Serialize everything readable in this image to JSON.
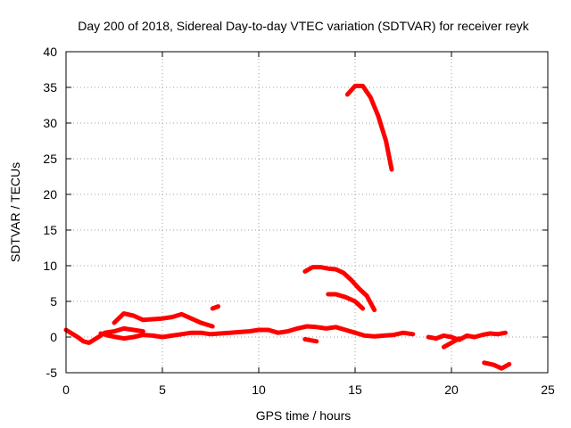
{
  "chart_data": {
    "type": "line",
    "title": "Day 200 of 2018, Sidereal Day-to-day VTEC variation (SDTVAR) for receiver reyk",
    "xlabel": "GPS time / hours",
    "ylabel": "SDTVAR / TECUs",
    "xlim": [
      0,
      25
    ],
    "ylim": [
      -5,
      40
    ],
    "xticks": [
      0,
      5,
      10,
      15,
      20,
      25
    ],
    "yticks": [
      -5,
      0,
      5,
      10,
      15,
      20,
      25,
      30,
      35,
      40
    ],
    "grid": true,
    "color": "#ff0000",
    "series": [
      {
        "name": "s1",
        "x": [
          0,
          0.3,
          0.6,
          0.9,
          1.2,
          1.5,
          1.8
        ],
        "y": [
          1,
          0.5,
          0,
          -0.6,
          -0.8,
          -0.3,
          0.2
        ]
      },
      {
        "name": "s2",
        "x": [
          1.8,
          2.2,
          2.6,
          3.0,
          3.5,
          4.0,
          4.5,
          5.0,
          5.5,
          6.0,
          6.5,
          7.0,
          7.5,
          8.0,
          8.5,
          9.0,
          9.5,
          10.0,
          10.5,
          11.0,
          11.5,
          12.0,
          12.5,
          13.0,
          13.5,
          14.0,
          14.5,
          15.0,
          15.5,
          16.0,
          16.5,
          17.0,
          17.5,
          18.0
        ],
        "y": [
          0.5,
          0.2,
          0.0,
          -0.2,
          0.0,
          0.3,
          0.2,
          0.0,
          0.2,
          0.4,
          0.6,
          0.6,
          0.4,
          0.5,
          0.6,
          0.7,
          0.8,
          1.0,
          1.0,
          0.6,
          0.8,
          1.2,
          1.5,
          1.4,
          1.2,
          1.4,
          1.0,
          0.6,
          0.2,
          0.1,
          0.2,
          0.3,
          0.6,
          0.4
        ]
      },
      {
        "name": "s3",
        "x": [
          2.5,
          3.0,
          3.5,
          4.0,
          4.5,
          5.0,
          5.5,
          6.0,
          6.5,
          7.0,
          7.6
        ],
        "y": [
          2.0,
          3.3,
          3.0,
          2.4,
          2.5,
          2.6,
          2.8,
          3.2,
          2.6,
          2.0,
          1.5
        ]
      },
      {
        "name": "s4",
        "x": [
          2.0,
          2.5,
          3.0,
          3.5,
          4.0
        ],
        "y": [
          0.6,
          0.8,
          1.2,
          1.0,
          0.8
        ]
      },
      {
        "name": "s5",
        "x": [
          7.6,
          7.9
        ],
        "y": [
          4.0,
          4.3
        ]
      },
      {
        "name": "s6",
        "x": [
          18.8,
          19.2,
          19.6,
          20.0,
          20.4,
          20.8,
          21.2,
          21.6,
          22.0,
          22.4,
          22.8
        ],
        "y": [
          0.0,
          -0.2,
          0.2,
          0.0,
          -0.4,
          0.2,
          0.0,
          0.3,
          0.5,
          0.4,
          0.6
        ]
      },
      {
        "name": "s7",
        "x": [
          19.6,
          20.0,
          20.4
        ],
        "y": [
          -1.4,
          -0.8,
          -0.2
        ]
      },
      {
        "name": "s8",
        "x": [
          21.7,
          22.2,
          22.6,
          23.0
        ],
        "y": [
          -3.6,
          -3.9,
          -4.4,
          -3.8
        ]
      },
      {
        "name": "s9",
        "x": [
          12.4,
          13.0
        ],
        "y": [
          -0.3,
          -0.6
        ]
      },
      {
        "name": "s10",
        "x": [
          12.4,
          12.8,
          13.2,
          13.6,
          14.0,
          14.4,
          14.8,
          15.2,
          15.6,
          16.0
        ],
        "y": [
          9.2,
          9.8,
          9.8,
          9.6,
          9.5,
          9.0,
          8.0,
          6.8,
          5.8,
          3.8
        ]
      },
      {
        "name": "s11",
        "x": [
          13.6,
          14.0,
          14.5,
          15.0,
          15.4
        ],
        "y": [
          6.0,
          6.0,
          5.6,
          5.0,
          4.0
        ]
      },
      {
        "name": "s12",
        "x": [
          14.6,
          15.0,
          15.4,
          15.8,
          16.2,
          16.6,
          16.9
        ],
        "y": [
          34.0,
          35.2,
          35.2,
          33.6,
          31.0,
          27.5,
          23.5
        ]
      }
    ]
  }
}
